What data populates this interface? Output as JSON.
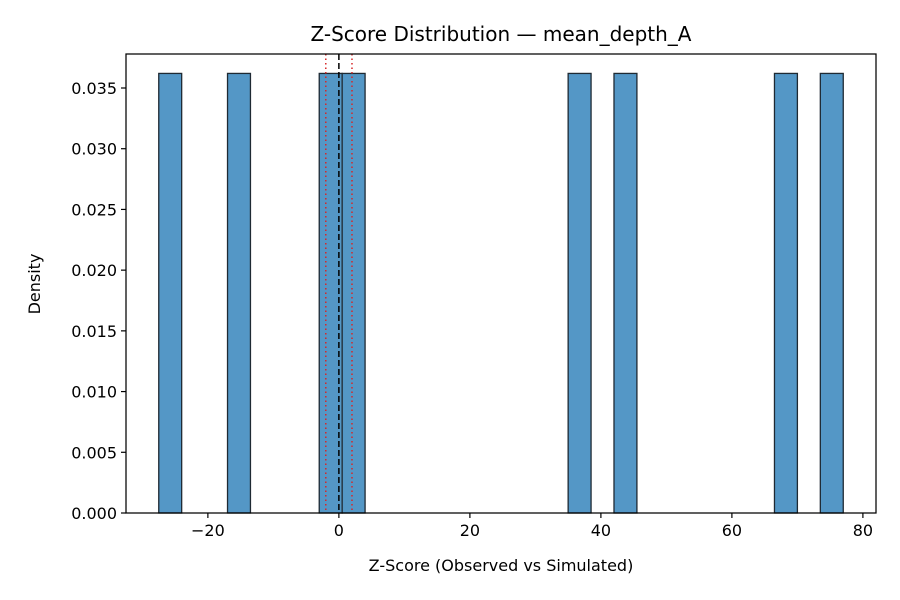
{
  "chart_data": {
    "type": "bar",
    "title": "Z-Score Distribution — mean_depth_A",
    "xlabel": "Z-Score (Observed vs Simulated)",
    "ylabel": "Density",
    "xlim": [
      -32.5,
      82
    ],
    "ylim": [
      0,
      0.0378
    ],
    "xticks": [
      -20,
      0,
      20,
      40,
      60,
      80
    ],
    "xtick_labels": [
      "−20",
      "0",
      "20",
      "40",
      "60",
      "80"
    ],
    "yticks": [
      0,
      0.005,
      0.01,
      0.015,
      0.02,
      0.025,
      0.03,
      0.035
    ],
    "ytick_labels": [
      "0.000",
      "0.005",
      "0.010",
      "0.015",
      "0.020",
      "0.025",
      "0.030",
      "0.035"
    ],
    "grid": false,
    "bins": [
      {
        "x0": -27.5,
        "x1": -24.0,
        "density": 0.0362
      },
      {
        "x0": -17.0,
        "x1": -13.5,
        "density": 0.0362
      },
      {
        "x0": -3.0,
        "x1": 0.5,
        "density": 0.0362
      },
      {
        "x0": 0.5,
        "x1": 4.0,
        "density": 0.0362
      },
      {
        "x0": 35.0,
        "x1": 38.5,
        "density": 0.0362
      },
      {
        "x0": 42.0,
        "x1": 45.5,
        "density": 0.0362
      },
      {
        "x0": 66.5,
        "x1": 70.0,
        "density": 0.0362
      },
      {
        "x0": 73.5,
        "x1": 77.0,
        "density": 0.0362
      }
    ],
    "reference_lines": [
      {
        "x": 0,
        "style": "dashed",
        "color": "#000000"
      },
      {
        "x": -2,
        "style": "dotted",
        "color": "#d62728"
      },
      {
        "x": 2,
        "style": "dotted",
        "color": "#d62728"
      }
    ],
    "colors": {
      "bar_fill": "#5497c6",
      "bar_edge": "#1f2a33",
      "axes": "#000000"
    }
  }
}
